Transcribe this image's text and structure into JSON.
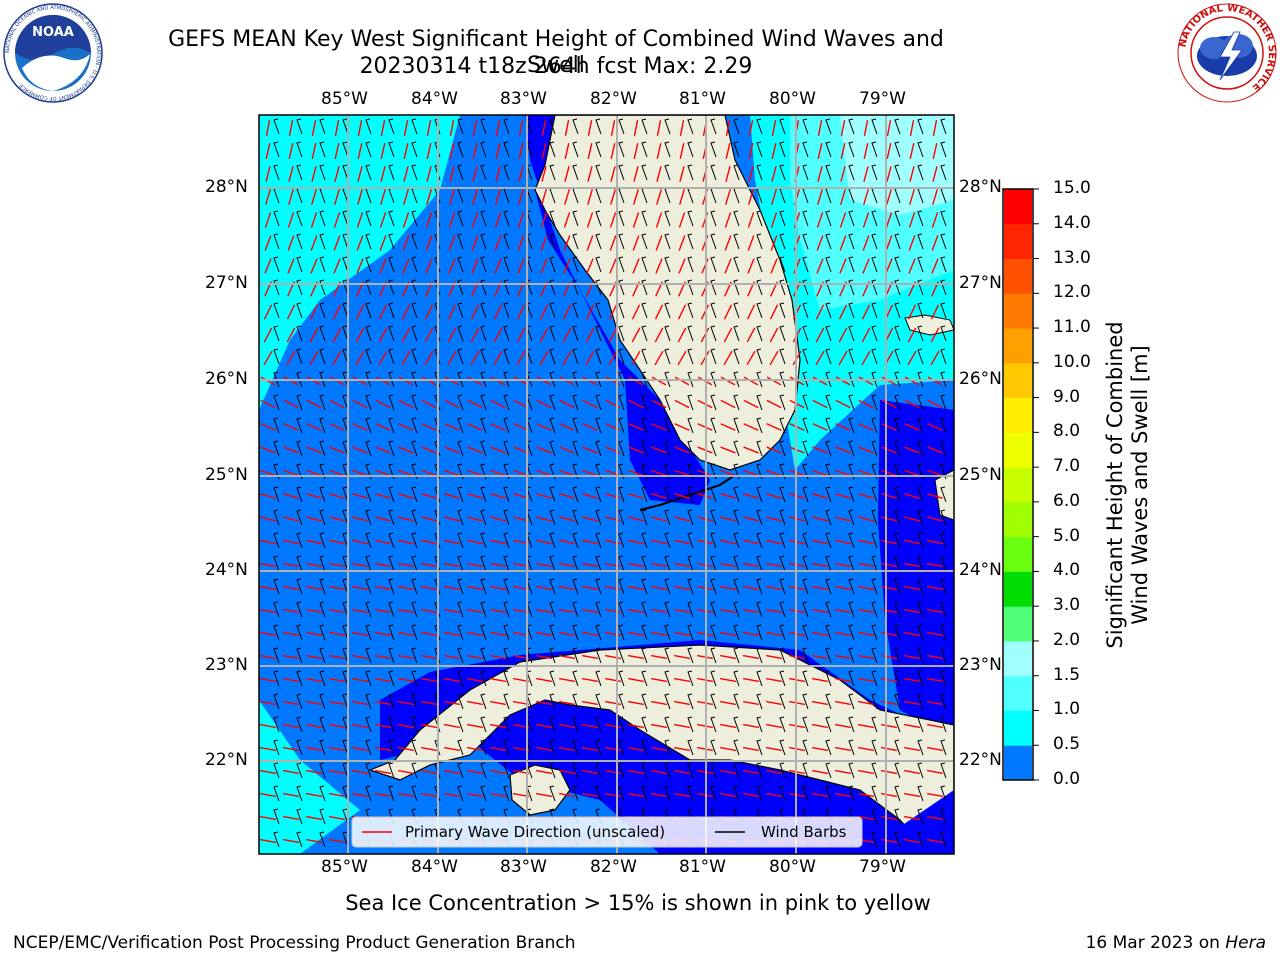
{
  "header": {
    "title": "GEFS MEAN Key West Significant Height of Combined Wind Waves and Swell",
    "subtitle": "20230314 t18z 264h fcst   Max: 2.29"
  },
  "logos": {
    "left": {
      "name": "NOAA",
      "ring_text": "NATIONAL OCEANIC AND ATMOSPHERIC ADMINISTRATION · U.S. DEPARTMENT OF COMMERCE ·"
    },
    "right": {
      "ring_text": "NATIONAL WEATHER SERVICE"
    }
  },
  "map": {
    "lon_labels": [
      "85°W",
      "84°W",
      "83°W",
      "82°W",
      "81°W",
      "80°W",
      "79°W"
    ],
    "lat_labels": [
      "28°N",
      "27°N",
      "26°N",
      "25°N",
      "24°N",
      "23°N",
      "22°N"
    ],
    "legend": {
      "wave_direction": "Primary Wave Direction (unscaled)",
      "wind_barbs": "Wind Barbs"
    },
    "colors": {
      "land": "#eeeedd",
      "water_0_0.5": "#0000ff",
      "water_0.5_1.0": "#0078ff",
      "water_1.0_1.5": "#00ffff",
      "water_1.5_2.0": "#50ffff",
      "water_2.0_3.0": "#a0ffff",
      "wave_arrow": "#ff0000",
      "barb": "#000000",
      "grid": "#b0b0b0"
    }
  },
  "colorbar": {
    "label_line1": "Significant Height of Combined",
    "label_line2": "Wind Waves and Swell [m]",
    "ticks": [
      "15.0",
      "14.0",
      "13.0",
      "12.0",
      "11.0",
      "10.0",
      "9.0",
      "8.0",
      "7.0",
      "6.0",
      "5.0",
      "4.0",
      "3.0",
      "2.0",
      "1.5",
      "1.0",
      "0.5",
      "0.0"
    ],
    "colors": [
      "#ff0000",
      "#ff2600",
      "#ff5000",
      "#ff7a00",
      "#ffa000",
      "#ffc800",
      "#ffee00",
      "#eeff00",
      "#c8ff00",
      "#a0ff00",
      "#6aff10",
      "#00dd00",
      "#50ff78",
      "#a0ffff",
      "#50ffff",
      "#00ffff",
      "#0078ff",
      "#0000ff"
    ]
  },
  "note": "Sea Ice Concentration > 15% is shown in pink to yellow",
  "footer": {
    "left": "NCEP/EMC/Verification Post Processing Product Generation Branch",
    "right_date": "16 Mar 2023 on ",
    "right_host": "Hera"
  }
}
